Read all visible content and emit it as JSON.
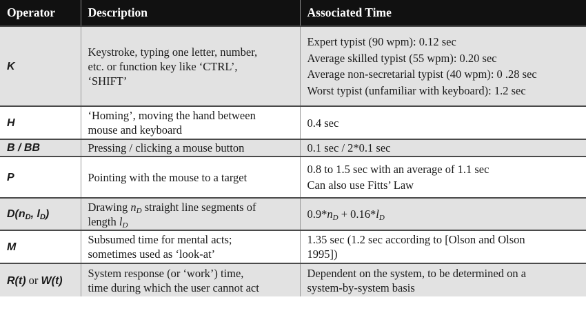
{
  "headers": {
    "operator": "Operator",
    "description": "Description",
    "time": "Associated Time"
  },
  "rows": {
    "k": {
      "operator": "K",
      "description": [
        "Keystroke, typing one letter, number,",
        "etc. or function key like ‘CTRL’,",
        "‘SHIFT’"
      ],
      "time": [
        "Expert typist (90 wpm): 0.12 sec",
        "Average skilled typist (55 wpm): 0.20 sec",
        "Average non-secretarial typist (40 wpm): 0 .28 sec",
        "Worst typist (unfamiliar with keyboard): 1.2 sec"
      ]
    },
    "h": {
      "operator": "H",
      "description": [
        "‘Homing’, moving the hand between",
        "mouse and keyboard"
      ],
      "time": [
        "0.4 sec"
      ]
    },
    "b": {
      "operator": "B / BB",
      "description": [
        "Pressing / clicking a mouse button"
      ],
      "time": [
        "0.1 sec / 2*0.1 sec"
      ]
    },
    "p": {
      "operator": "P",
      "description": [
        "Pointing with the mouse to a target"
      ],
      "time": [
        "0.8 to 1.5 sec with an average of 1.1 sec",
        "Can also use Fitts’ Law"
      ]
    },
    "d": {
      "operator_main": "D(n",
      "operator_sub1": "D",
      "operator_mid": ", l",
      "operator_sub2": "D",
      "operator_end": ")",
      "description_pre": "Drawing ",
      "description_var": "n",
      "description_var_sub": "D",
      "description_mid": " straight line segments of",
      "description_line2_pre": "length ",
      "description_var2": "l",
      "description_var2_sub": "D",
      "time_pre": "0.9*",
      "time_var1": "n",
      "time_var1_sub": "D",
      "time_mid": " + 0.16*",
      "time_var2": "l",
      "time_var2_sub": "D"
    },
    "m": {
      "operator": "M",
      "description": [
        "Subsumed time for mental acts;",
        "sometimes used as ‘look-at’"
      ],
      "time": [
        "1.35 sec (1.2 sec according to [Olson and Olson",
        "1995])"
      ]
    },
    "r": {
      "operator_a": "R(t)",
      "operator_or": " or ",
      "operator_b": "W(t)",
      "description": [
        "System response (or ‘work’) time,",
        "time during which the user cannot act"
      ],
      "time": [
        "Dependent on the system, to be determined on a",
        "system-by-system basis"
      ]
    }
  }
}
